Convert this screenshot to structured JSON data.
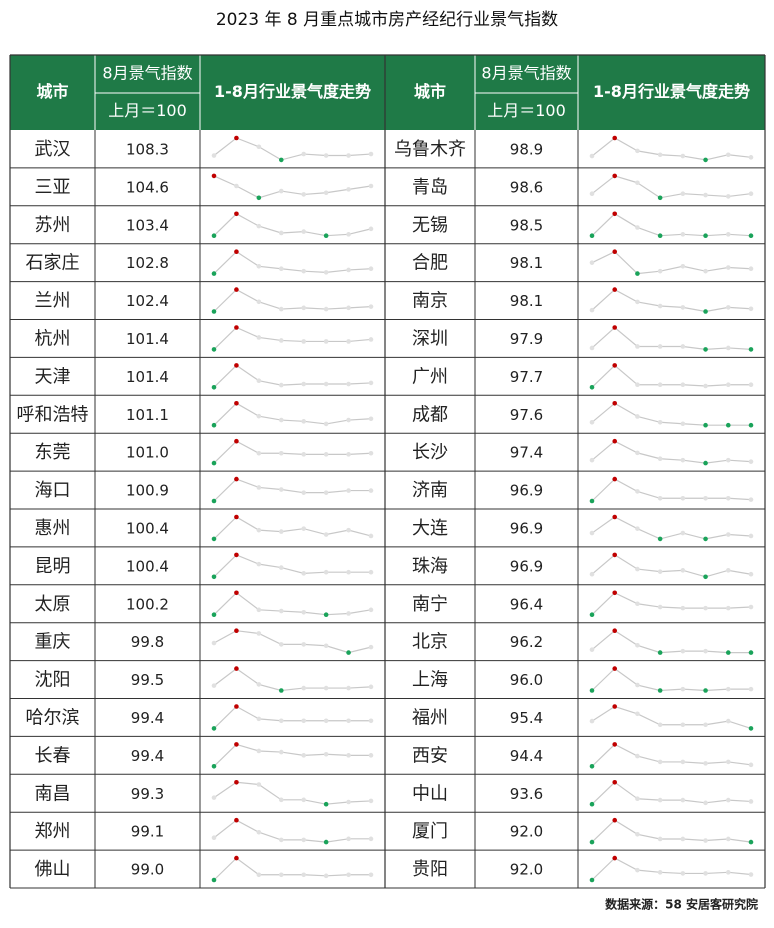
{
  "title": "2023 年 8 月重点城市房产经纪行业景气指数",
  "header": {
    "city": "城市",
    "index": "8月景气指数",
    "base": "上月＝100",
    "trend": "1-8月行业景气度走势"
  },
  "source": "数据来源：58 安居客研究院",
  "left": [
    {
      "city": "武汉",
      "index": "108.3",
      "trend": [
        100,
        112,
        106,
        97,
        101,
        100,
        100,
        101
      ]
    },
    {
      "city": "三亚",
      "index": "104.6",
      "trend": [
        110,
        104,
        97,
        101,
        99,
        100,
        102,
        104
      ]
    },
    {
      "city": "苏州",
      "index": "103.4",
      "trend": [
        96,
        112,
        103,
        98,
        99,
        96,
        97,
        101
      ]
    },
    {
      "city": "石家庄",
      "index": "102.8",
      "trend": [
        95,
        113,
        101,
        99,
        97,
        96,
        98,
        99
      ]
    },
    {
      "city": "兰州",
      "index": "102.4",
      "trend": [
        96,
        114,
        104,
        98,
        99,
        98,
        99,
        100
      ]
    },
    {
      "city": "杭州",
      "index": "101.4",
      "trend": [
        90,
        112,
        102,
        99,
        98,
        98,
        98,
        100
      ]
    },
    {
      "city": "天津",
      "index": "101.4",
      "trend": [
        95,
        115,
        101,
        97,
        98,
        98,
        98,
        99
      ]
    },
    {
      "city": "呼和浩特",
      "index": "101.1",
      "trend": [
        96,
        113,
        103,
        100,
        99,
        97,
        100,
        101
      ]
    },
    {
      "city": "东莞",
      "index": "101.0",
      "trend": [
        92,
        112,
        101,
        101,
        100,
        100,
        100,
        101
      ]
    },
    {
      "city": "海口",
      "index": "100.9",
      "trend": [
        93,
        114,
        106,
        104,
        101,
        101,
        103,
        103
      ]
    },
    {
      "city": "惠州",
      "index": "100.4",
      "trend": [
        98,
        113,
        104,
        103,
        105,
        101,
        104,
        100
      ]
    },
    {
      "city": "昆明",
      "index": "100.4",
      "trend": [
        94,
        113,
        105,
        102,
        97,
        98,
        98,
        98
      ]
    },
    {
      "city": "太原",
      "index": "100.2",
      "trend": [
        96,
        114,
        100,
        99,
        98,
        96,
        97,
        100
      ]
    },
    {
      "city": "重庆",
      "index": "99.8",
      "trend": [
        105,
        114,
        112,
        104,
        104,
        103,
        98,
        102
      ]
    },
    {
      "city": "沈阳",
      "index": "99.5",
      "trend": [
        100,
        114,
        101,
        96,
        98,
        98,
        98,
        99
      ]
    },
    {
      "city": "哈尔滨",
      "index": "99.4",
      "trend": [
        92,
        115,
        102,
        100,
        100,
        100,
        100,
        100
      ]
    },
    {
      "city": "长春",
      "index": "99.4",
      "trend": [
        93,
        113,
        107,
        106,
        103,
        104,
        103,
        103
      ]
    },
    {
      "city": "南昌",
      "index": "99.3",
      "trend": [
        100,
        114,
        112,
        98,
        98,
        94,
        96,
        97
      ]
    },
    {
      "city": "郑州",
      "index": "99.1",
      "trend": [
        98,
        114,
        103,
        96,
        96,
        94,
        97,
        97
      ]
    },
    {
      "city": "佛山",
      "index": "99.0",
      "trend": [
        92,
        113,
        97,
        97,
        97,
        96,
        97,
        97
      ]
    }
  ],
  "right": [
    {
      "city": "乌鲁木齐",
      "index": "98.9",
      "trend": [
        100,
        114,
        104,
        101,
        100,
        97,
        101,
        99
      ]
    },
    {
      "city": "青岛",
      "index": "98.6",
      "trend": [
        100,
        113,
        108,
        97,
        100,
        99,
        98,
        100
      ]
    },
    {
      "city": "无锡",
      "index": "98.5",
      "trend": [
        98,
        114,
        104,
        98,
        99,
        98,
        99,
        98
      ]
    },
    {
      "city": "合肥",
      "index": "98.1",
      "trend": [
        105,
        114,
        96,
        98,
        102,
        98,
        101,
        100
      ]
    },
    {
      "city": "南京",
      "index": "98.1",
      "trend": [
        98,
        113,
        104,
        101,
        100,
        97,
        100,
        99
      ]
    },
    {
      "city": "深圳",
      "index": "97.9",
      "trend": [
        100,
        114,
        101,
        101,
        101,
        99,
        100,
        99
      ]
    },
    {
      "city": "广州",
      "index": "97.7",
      "trend": [
        97,
        114,
        99,
        99,
        99,
        98,
        99,
        99
      ]
    },
    {
      "city": "成都",
      "index": "97.6",
      "trend": [
        100,
        113,
        104,
        100,
        99,
        98,
        98,
        98
      ]
    },
    {
      "city": "长沙",
      "index": "97.4",
      "trend": [
        100,
        113,
        105,
        101,
        100,
        98,
        100,
        99
      ]
    },
    {
      "city": "济南",
      "index": "96.9",
      "trend": [
        97,
        113,
        104,
        99,
        99,
        99,
        99,
        98
      ]
    },
    {
      "city": "大连",
      "index": "96.9",
      "trend": [
        102,
        113,
        105,
        98,
        102,
        98,
        101,
        100
      ]
    },
    {
      "city": "珠海",
      "index": "96.9",
      "trend": [
        98,
        113,
        102,
        100,
        101,
        96,
        101,
        98
      ]
    },
    {
      "city": "南宁",
      "index": "96.4",
      "trend": [
        92,
        112,
        102,
        99,
        98,
        98,
        98,
        99
      ]
    },
    {
      "city": "北京",
      "index": "96.2",
      "trend": [
        100,
        113,
        103,
        98,
        99,
        99,
        98,
        98
      ]
    },
    {
      "city": "上海",
      "index": "96.0",
      "trend": [
        98,
        114,
        102,
        98,
        99,
        98,
        99,
        99
      ]
    },
    {
      "city": "福州",
      "index": "95.4",
      "trend": [
        106,
        114,
        110,
        104,
        104,
        104,
        106,
        102
      ]
    },
    {
      "city": "西安",
      "index": "94.4",
      "trend": [
        98,
        113,
        105,
        101,
        101,
        100,
        101,
        99
      ]
    },
    {
      "city": "中山",
      "index": "93.6",
      "trend": [
        98,
        114,
        102,
        101,
        101,
        99,
        101,
        100
      ]
    },
    {
      "city": "厦门",
      "index": "92.0",
      "trend": [
        99,
        113,
        104,
        101,
        101,
        100,
        101,
        99
      ]
    },
    {
      "city": "贵阳",
      "index": "92.0",
      "trend": [
        92,
        112,
        101,
        99,
        98,
        98,
        99,
        97
      ]
    }
  ]
}
